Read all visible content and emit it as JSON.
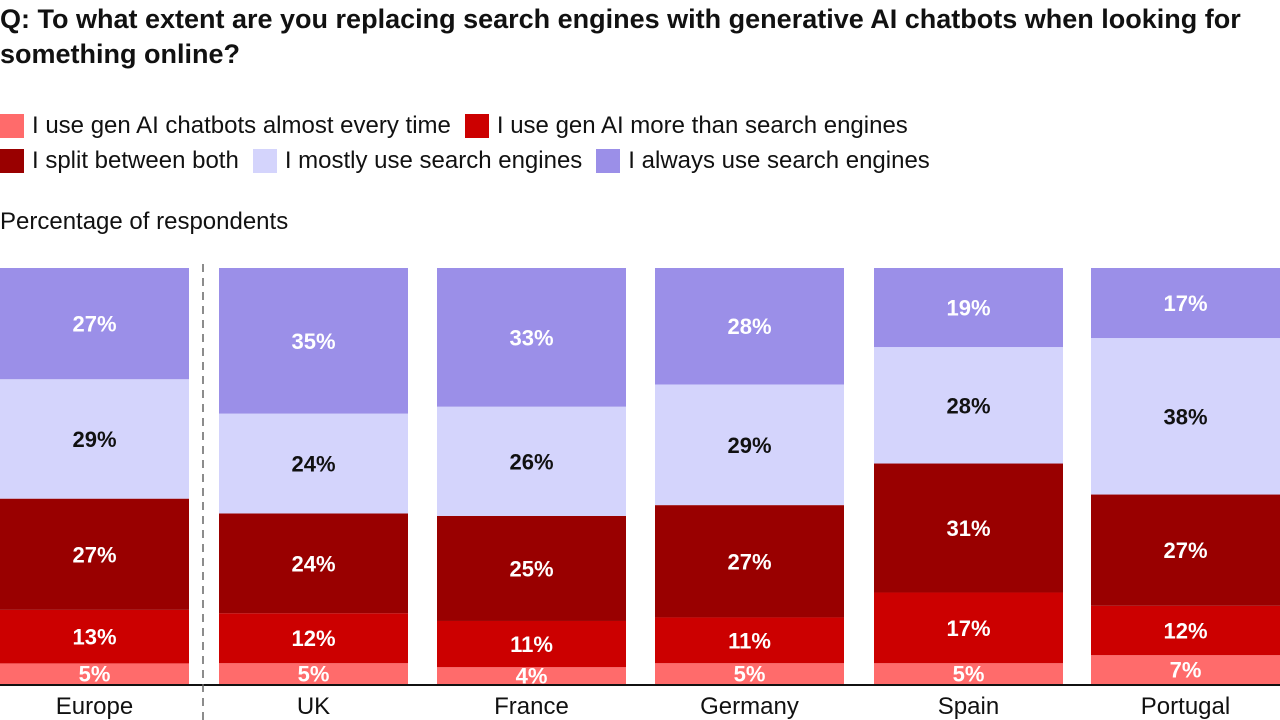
{
  "chart_data": {
    "type": "bar",
    "stacked": true,
    "orientation": "vertical",
    "title": "Q: To what extent are you replacing search engines with generative AI chatbots when looking for something online?",
    "ylabel": "Percentage of respondents",
    "xlabel": "",
    "ylim": [
      0,
      100
    ],
    "grid": false,
    "legend_placement": "top",
    "categories": [
      "Europe",
      "UK",
      "France",
      "Germany",
      "Spain",
      "Portugal"
    ],
    "series": [
      {
        "name": "I use gen AI chatbots almost every time",
        "color": "#FF6B6B",
        "label_color": "#FFFFFF",
        "values": [
          5,
          5,
          4,
          5,
          5,
          7
        ]
      },
      {
        "name": "I use gen AI more than search engines",
        "color": "#CC0000",
        "label_color": "#FFFFFF",
        "values": [
          13,
          12,
          11,
          11,
          17,
          12
        ]
      },
      {
        "name": "I split between both",
        "color": "#990000",
        "label_color": "#FFFFFF",
        "values": [
          27,
          24,
          25,
          27,
          31,
          27
        ]
      },
      {
        "name": "I mostly use search engines",
        "color": "#D4D4FC",
        "label_color": "#111111",
        "values": [
          29,
          24,
          26,
          29,
          28,
          38
        ]
      },
      {
        "name": "I always use search engines",
        "color": "#9B8FE8",
        "label_color": "#FFFFFF",
        "values": [
          27,
          35,
          33,
          28,
          19,
          17
        ]
      }
    ],
    "value_suffix": "%",
    "separator_after_category": "Europe"
  }
}
